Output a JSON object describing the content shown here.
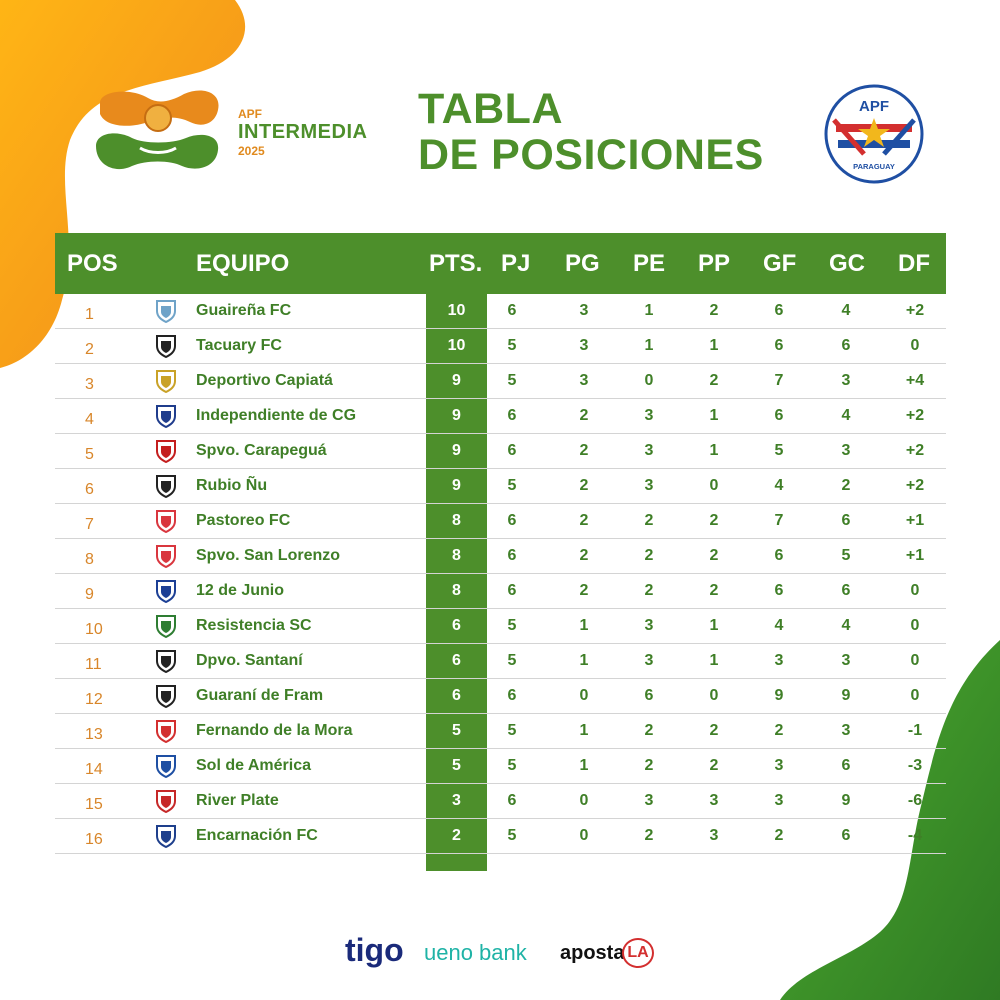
{
  "logo": {
    "apf": "APF",
    "name": "INTERMEDIA",
    "year": "2025"
  },
  "title": {
    "line1": "TABLA",
    "line2": "DE POSICIONES"
  },
  "badge": {
    "top": "APF",
    "bottom": "PARAGUAY"
  },
  "headers": [
    "POS",
    "EQUIPO",
    "PTS.",
    "PJ",
    "PG",
    "PE",
    "PP",
    "GF",
    "GC",
    "DF"
  ],
  "rows": [
    {
      "pos": "1",
      "team": "Guaireña FC",
      "pts": "10",
      "pj": "6",
      "pg": "3",
      "pe": "1",
      "pp": "2",
      "gf": "6",
      "gc": "4",
      "df": "+2"
    },
    {
      "pos": "2",
      "team": "Tacuary FC",
      "pts": "10",
      "pj": "5",
      "pg": "3",
      "pe": "1",
      "pp": "1",
      "gf": "6",
      "gc": "6",
      "df": "0"
    },
    {
      "pos": "3",
      "team": "Deportivo Capiatá",
      "pts": "9",
      "pj": "5",
      "pg": "3",
      "pe": "0",
      "pp": "2",
      "gf": "7",
      "gc": "3",
      "df": "+4"
    },
    {
      "pos": "4",
      "team": "Independiente de CG",
      "pts": "9",
      "pj": "6",
      "pg": "2",
      "pe": "3",
      "pp": "1",
      "gf": "6",
      "gc": "4",
      "df": "+2"
    },
    {
      "pos": "5",
      "team": "Spvo. Carapeguá",
      "pts": "9",
      "pj": "6",
      "pg": "2",
      "pe": "3",
      "pp": "1",
      "gf": "5",
      "gc": "3",
      "df": "+2"
    },
    {
      "pos": "6",
      "team": "Rubio Ñu",
      "pts": "9",
      "pj": "5",
      "pg": "2",
      "pe": "3",
      "pp": "0",
      "gf": "4",
      "gc": "2",
      "df": "+2"
    },
    {
      "pos": "7",
      "team": "Pastoreo FC",
      "pts": "8",
      "pj": "6",
      "pg": "2",
      "pe": "2",
      "pp": "2",
      "gf": "7",
      "gc": "6",
      "df": "+1"
    },
    {
      "pos": "8",
      "team": "Spvo. San Lorenzo",
      "pts": "8",
      "pj": "6",
      "pg": "2",
      "pe": "2",
      "pp": "2",
      "gf": "6",
      "gc": "5",
      "df": "+1"
    },
    {
      "pos": "9",
      "team": "12 de Junio",
      "pts": "8",
      "pj": "6",
      "pg": "2",
      "pe": "2",
      "pp": "2",
      "gf": "6",
      "gc": "6",
      "df": "0"
    },
    {
      "pos": "10",
      "team": "Resistencia SC",
      "pts": "6",
      "pj": "5",
      "pg": "1",
      "pe": "3",
      "pp": "1",
      "gf": "4",
      "gc": "4",
      "df": "0"
    },
    {
      "pos": "11",
      "team": "Dpvo. Santaní",
      "pts": "6",
      "pj": "5",
      "pg": "1",
      "pe": "3",
      "pp": "1",
      "gf": "3",
      "gc": "3",
      "df": "0"
    },
    {
      "pos": "12",
      "team": "Guaraní de Fram",
      "pts": "6",
      "pj": "6",
      "pg": "0",
      "pe": "6",
      "pp": "0",
      "gf": "9",
      "gc": "9",
      "df": "0"
    },
    {
      "pos": "13",
      "team": "Fernando de la Mora",
      "pts": "5",
      "pj": "5",
      "pg": "1",
      "pe": "2",
      "pp": "2",
      "gf": "2",
      "gc": "3",
      "df": "-1"
    },
    {
      "pos": "14",
      "team": "Sol de América",
      "pts": "5",
      "pj": "5",
      "pg": "1",
      "pe": "2",
      "pp": "2",
      "gf": "3",
      "gc": "6",
      "df": "-3"
    },
    {
      "pos": "15",
      "team": "River Plate",
      "pts": "3",
      "pj": "6",
      "pg": "0",
      "pe": "3",
      "pp": "3",
      "gf": "3",
      "gc": "9",
      "df": "-6"
    },
    {
      "pos": "16",
      "team": "Encarnación FC",
      "pts": "2",
      "pj": "5",
      "pg": "0",
      "pe": "2",
      "pp": "3",
      "gf": "2",
      "gc": "6",
      "df": "-4"
    }
  ],
  "crest_icons": [
    "guairena-crest-icon",
    "tacuary-crest-icon",
    "capiata-crest-icon",
    "independiente-crest-icon",
    "carapegua-crest-icon",
    "rubio-nu-crest-icon",
    "pastoreo-crest-icon",
    "san-lorenzo-crest-icon",
    "12-de-junio-crest-icon",
    "resistencia-crest-icon",
    "santani-crest-icon",
    "guarani-fram-crest-icon",
    "fernando-de-la-mora-crest-icon",
    "sol-de-america-crest-icon",
    "river-plate-crest-icon",
    "encarnacion-crest-icon"
  ],
  "crest_colors": [
    "#6fa3c8",
    "#222222",
    "#c9a227",
    "#1f3c8c",
    "#c41e1e",
    "#222222",
    "#d9363e",
    "#d9363e",
    "#1c3f95",
    "#2e7d32",
    "#222222",
    "#222222",
    "#d32f2f",
    "#1e4fa3",
    "#c62828",
    "#1e3f8c"
  ],
  "sponsors": {
    "tigo": "tigo",
    "ueno": "ueno bank",
    "aposta": "aposta",
    "aposta_la": "LA"
  },
  "colors": {
    "green": "#4d8f2b",
    "orange": "#f5a21b",
    "pos_orange": "#d8862a"
  }
}
